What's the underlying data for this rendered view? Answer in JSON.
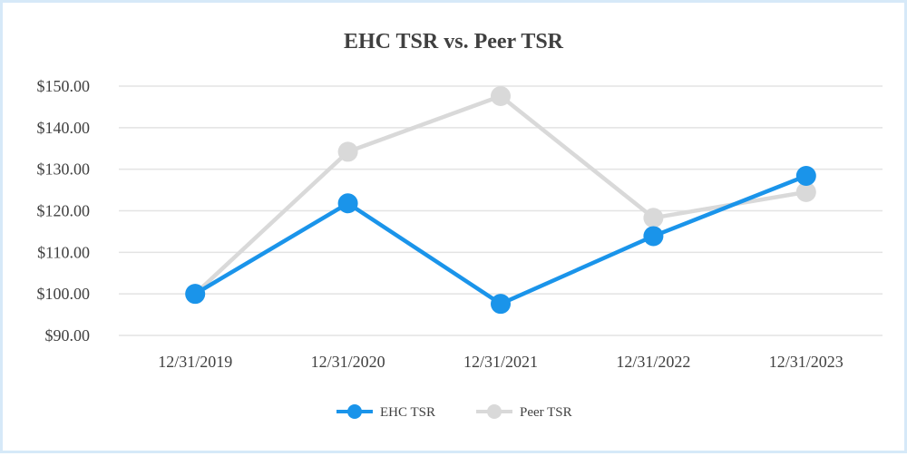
{
  "chart_data": {
    "type": "line",
    "title": "EHC TSR vs. Peer TSR",
    "xlabel": "",
    "ylabel": "",
    "categories": [
      "12/31/2019",
      "12/31/2020",
      "12/31/2021",
      "12/31/2022",
      "12/31/2023"
    ],
    "y_ticks": [
      "$90.00",
      "$100.00",
      "$110.00",
      "$120.00",
      "$130.00",
      "$140.00",
      "$150.00"
    ],
    "ylim": [
      90,
      150
    ],
    "grid": true,
    "legend_position": "bottom-center",
    "series": [
      {
        "name": "EHC TSR",
        "values": [
          100.0,
          121.8,
          97.6,
          113.9,
          128.4
        ],
        "color": "#1a94ea"
      },
      {
        "name": "Peer TSR",
        "values": [
          100.0,
          134.2,
          147.6,
          118.3,
          124.5
        ],
        "color": "#d9d9d9"
      }
    ]
  }
}
